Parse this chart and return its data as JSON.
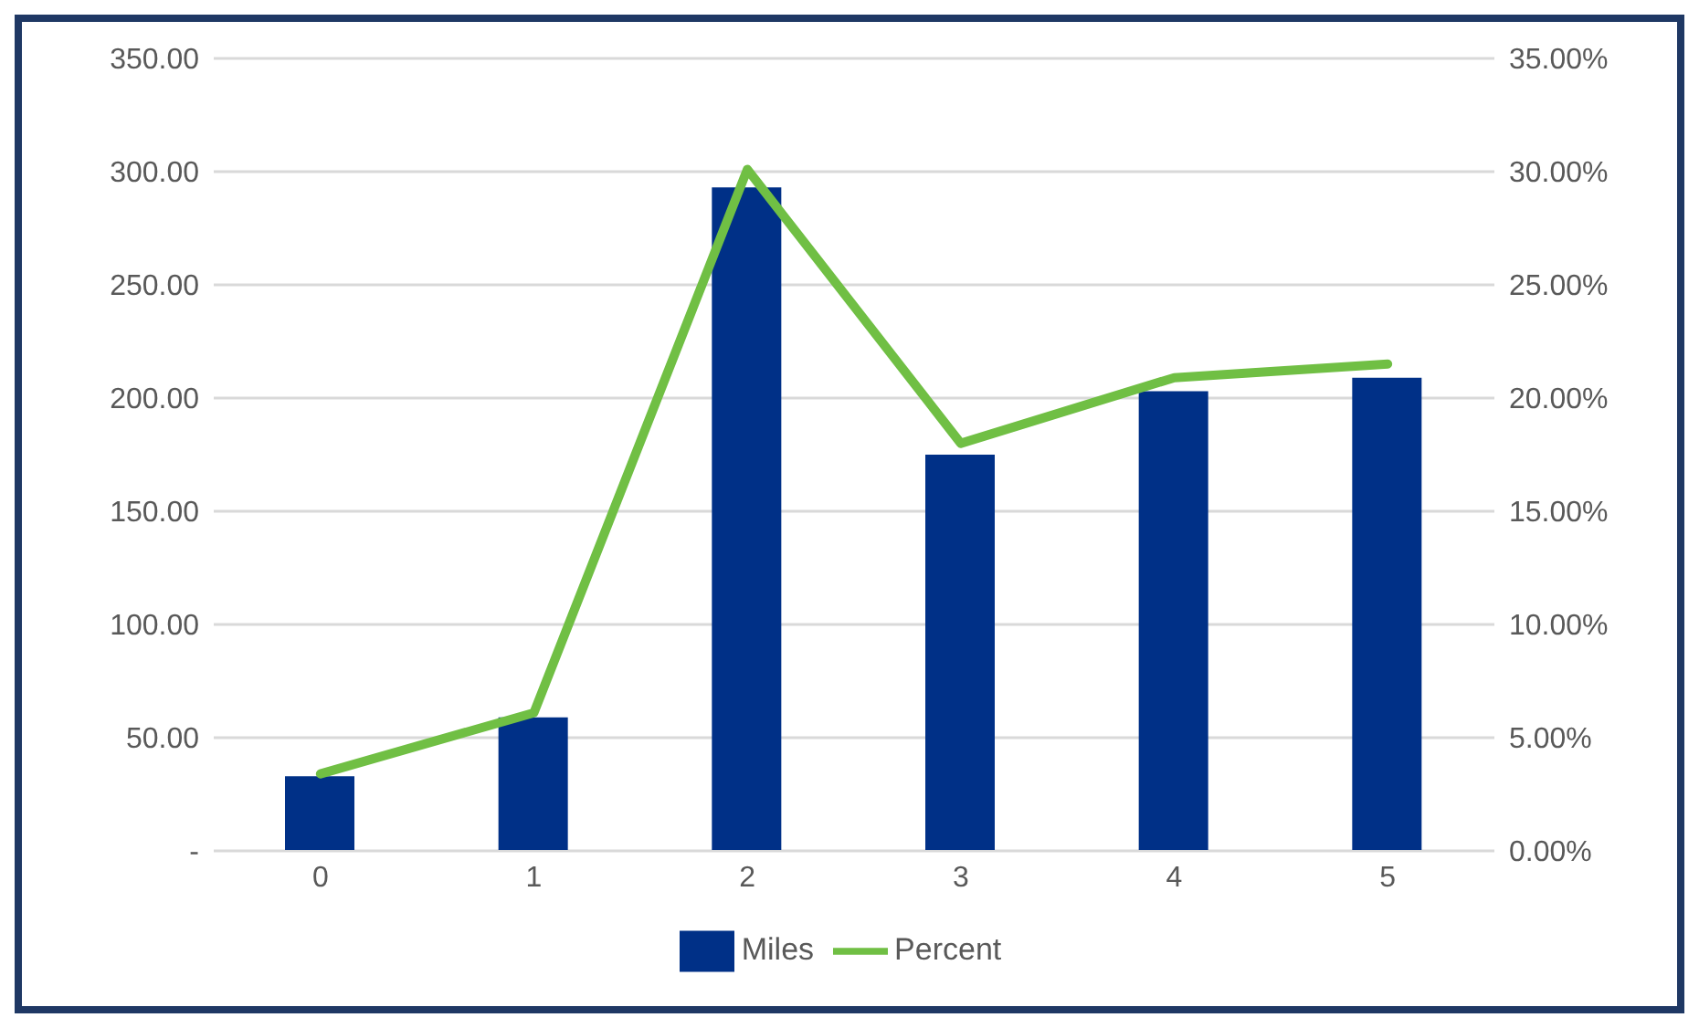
{
  "chart_data": {
    "type": "bar",
    "categories": [
      "0",
      "1",
      "2",
      "3",
      "4",
      "5"
    ],
    "series": [
      {
        "name": "Miles",
        "color": "#003087",
        "values": [
          33,
          59,
          293,
          175,
          203,
          209
        ]
      },
      {
        "name": "Percent",
        "type": "line",
        "axis": "y2",
        "color": "#70bf44",
        "values": [
          3.4,
          6.1,
          30.1,
          18.0,
          20.9,
          21.5
        ]
      }
    ],
    "ylim": [
      0,
      350
    ],
    "yticks": [
      {
        "value": 0,
        "label": "-"
      },
      {
        "value": 50,
        "label": "50.00"
      },
      {
        "value": 100,
        "label": "100.00"
      },
      {
        "value": 150,
        "label": "150.00"
      },
      {
        "value": 200,
        "label": "200.00"
      },
      {
        "value": 250,
        "label": "250.00"
      },
      {
        "value": 300,
        "label": "300.00"
      },
      {
        "value": 350,
        "label": "350.00"
      }
    ],
    "y2lim": [
      0,
      35
    ],
    "y2ticks": [
      {
        "value": 0,
        "label": "0.00%"
      },
      {
        "value": 5,
        "label": "5.00%"
      },
      {
        "value": 10,
        "label": "10.00%"
      },
      {
        "value": 15,
        "label": "15.00%"
      },
      {
        "value": 20,
        "label": "20.00%"
      },
      {
        "value": 25,
        "label": "25.00%"
      },
      {
        "value": 30,
        "label": "30.00%"
      },
      {
        "value": 35,
        "label": "35.00%"
      }
    ],
    "grid": "y",
    "legend": "bottom",
    "marker": "none",
    "line_style": "solid"
  }
}
